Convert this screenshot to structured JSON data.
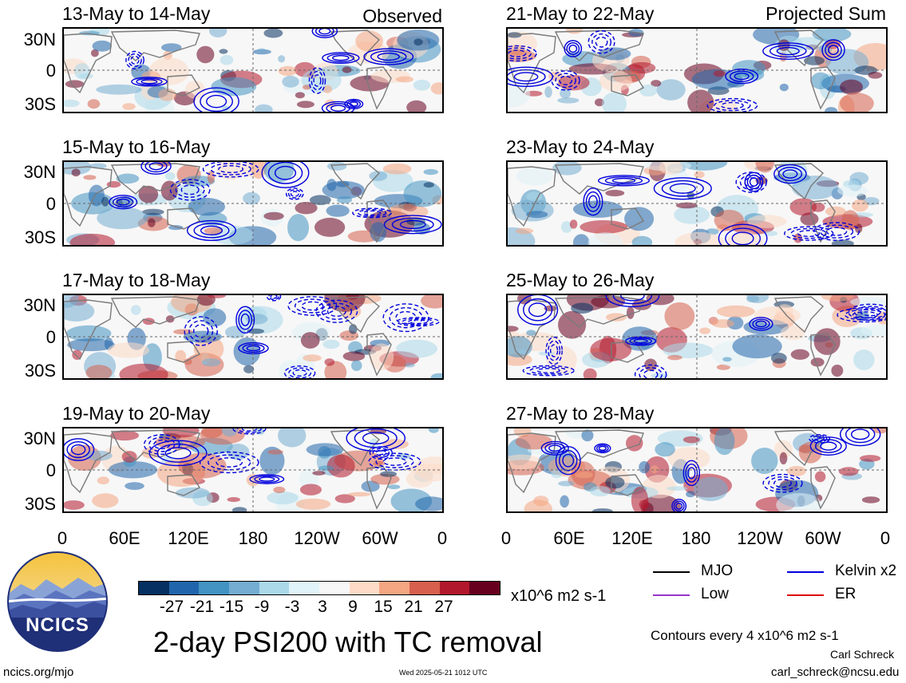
{
  "left_header": "Observed",
  "right_header": "Projected Sum",
  "lat_labels": [
    "30N",
    "0",
    "30S"
  ],
  "lon_labels": [
    "0",
    "60E",
    "120E",
    "180",
    "120W",
    "60W",
    "0"
  ],
  "left_panels": [
    {
      "title": "13-May to 14-May"
    },
    {
      "title": "15-May to 16-May"
    },
    {
      "title": "17-May to 18-May"
    },
    {
      "title": "19-May to 20-May"
    }
  ],
  "right_panels": [
    {
      "title": "21-May to 22-May"
    },
    {
      "title": "23-May to 24-May"
    },
    {
      "title": "25-May to 26-May"
    },
    {
      "title": "27-May to 28-May"
    }
  ],
  "colorbar": {
    "colors": [
      "#053061",
      "#2166ac",
      "#4393c3",
      "#74add1",
      "#abd9e9",
      "#e0f3f8",
      "#f7f7f7",
      "#fddbc7",
      "#f4a582",
      "#d6604d",
      "#b2182b",
      "#67001f"
    ],
    "ticks": [
      "-27",
      "-21",
      "-15",
      "-9",
      "-3",
      "3",
      "9",
      "15",
      "21",
      "27"
    ],
    "units": "x10^6 m2 s-1"
  },
  "legend": {
    "items": [
      {
        "label": "MJO",
        "color": "#000000"
      },
      {
        "label": "Kelvin x2",
        "color": "#0000dd"
      },
      {
        "label": "Low",
        "color": "#9933cc"
      },
      {
        "label": "ER",
        "color": "#dd0000"
      }
    ],
    "contours_note": "Contours every 4 x10^6 m2 s-1"
  },
  "main_title": "2-day PSI200 with TC removal",
  "logo_text": "NCICS",
  "url": "ncics.org/mjo",
  "timestamp": "Wed 2025-05-21 1012 UTC",
  "author": "Carl Schreck",
  "email": "carl_schreck@ncsu.edu"
}
